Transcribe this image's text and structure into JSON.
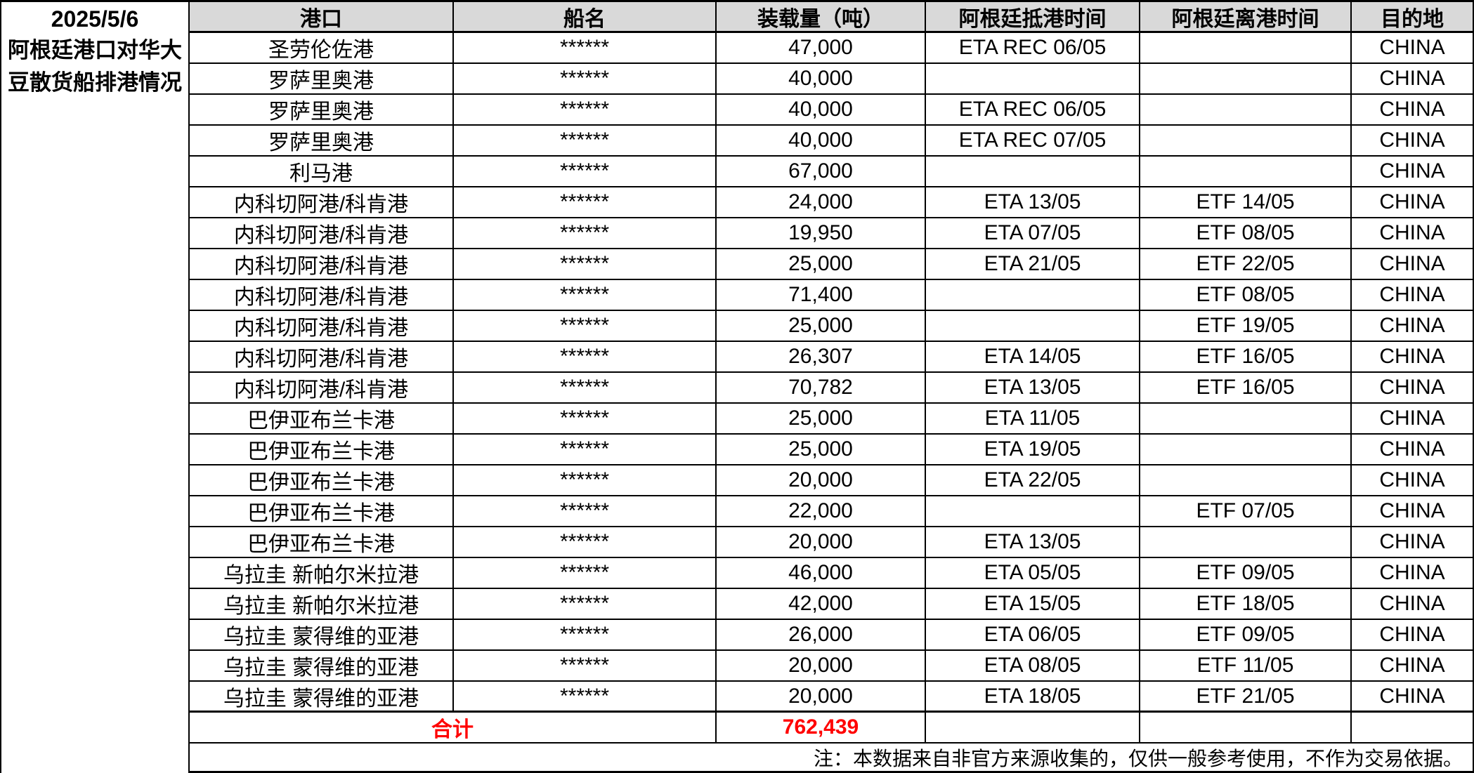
{
  "title": {
    "date": "2025/5/6",
    "caption": "阿根廷港口对华大豆散货船排港情况"
  },
  "colors": {
    "header_bg": "#d9d9d9",
    "accent_red": "#ff0000",
    "border": "#000000"
  },
  "table": {
    "headers": [
      "港口",
      "船名",
      "装载量（吨）",
      "阿根廷抵港时间",
      "阿根廷离港时间",
      "目的地"
    ],
    "rows": [
      {
        "port": "圣劳伦佐港",
        "ship": "******",
        "tons": "47,000",
        "eta": "ETA REC 06/05",
        "etf": "",
        "dest": "CHINA"
      },
      {
        "port": "罗萨里奥港",
        "ship": "******",
        "tons": "40,000",
        "eta": "",
        "etf": "",
        "dest": "CHINA"
      },
      {
        "port": "罗萨里奥港",
        "ship": "******",
        "tons": "40,000",
        "eta": "ETA REC 06/05",
        "etf": "",
        "dest": "CHINA"
      },
      {
        "port": "罗萨里奥港",
        "ship": "******",
        "tons": "40,000",
        "eta": "ETA REC 07/05",
        "etf": "",
        "dest": "CHINA"
      },
      {
        "port": "利马港",
        "ship": "******",
        "tons": "67,000",
        "eta": "",
        "etf": "",
        "dest": "CHINA"
      },
      {
        "port": "内科切阿港/科肯港",
        "ship": "******",
        "tons": "24,000",
        "eta": "ETA 13/05",
        "etf": "ETF 14/05",
        "dest": "CHINA"
      },
      {
        "port": "内科切阿港/科肯港",
        "ship": "******",
        "tons": "19,950",
        "eta": "ETA 07/05",
        "etf": "ETF 08/05",
        "dest": "CHINA"
      },
      {
        "port": "内科切阿港/科肯港",
        "ship": "******",
        "tons": "25,000",
        "eta": "ETA 21/05",
        "etf": "ETF 22/05",
        "dest": "CHINA"
      },
      {
        "port": "内科切阿港/科肯港",
        "ship": "******",
        "tons": "71,400",
        "eta": "",
        "etf": "ETF 08/05",
        "dest": "CHINA"
      },
      {
        "port": "内科切阿港/科肯港",
        "ship": "******",
        "tons": "25,000",
        "eta": "",
        "etf": "ETF 19/05",
        "dest": "CHINA"
      },
      {
        "port": "内科切阿港/科肯港",
        "ship": "******",
        "tons": "26,307",
        "eta": "ETA 14/05",
        "etf": "ETF 16/05",
        "dest": "CHINA"
      },
      {
        "port": "内科切阿港/科肯港",
        "ship": "******",
        "tons": "70,782",
        "eta": "ETA 13/05",
        "etf": "ETF 16/05",
        "dest": "CHINA"
      },
      {
        "port": "巴伊亚布兰卡港",
        "ship": "******",
        "tons": "25,000",
        "eta": "ETA 11/05",
        "etf": "",
        "dest": "CHINA"
      },
      {
        "port": "巴伊亚布兰卡港",
        "ship": "******",
        "tons": "25,000",
        "eta": "ETA 19/05",
        "etf": "",
        "dest": "CHINA"
      },
      {
        "port": "巴伊亚布兰卡港",
        "ship": "******",
        "tons": "20,000",
        "eta": "ETA 22/05",
        "etf": "",
        "dest": "CHINA"
      },
      {
        "port": "巴伊亚布兰卡港",
        "ship": "******",
        "tons": "22,000",
        "eta": "",
        "etf": "ETF 07/05",
        "dest": "CHINA"
      },
      {
        "port": "巴伊亚布兰卡港",
        "ship": "******",
        "tons": "20,000",
        "eta": "ETA 13/05",
        "etf": "",
        "dest": "CHINA"
      },
      {
        "port": "乌拉圭 新帕尔米拉港",
        "ship": "******",
        "tons": "46,000",
        "eta": "ETA 05/05",
        "etf": "ETF 09/05",
        "dest": "CHINA"
      },
      {
        "port": "乌拉圭 新帕尔米拉港",
        "ship": "******",
        "tons": "42,000",
        "eta": "ETA 15/05",
        "etf": "ETF 18/05",
        "dest": "CHINA"
      },
      {
        "port": "乌拉圭 蒙得维的亚港",
        "ship": "******",
        "tons": "26,000",
        "eta": "ETA 06/05",
        "etf": "ETF 09/05",
        "dest": "CHINA"
      },
      {
        "port": "乌拉圭 蒙得维的亚港",
        "ship": "******",
        "tons": "20,000",
        "eta": "ETA 08/05",
        "etf": "ETF 11/05",
        "dest": "CHINA"
      },
      {
        "port": "乌拉圭 蒙得维的亚港",
        "ship": "******",
        "tons": "20,000",
        "eta": "ETA 18/05",
        "etf": "ETF 21/05",
        "dest": "CHINA"
      }
    ],
    "total": {
      "label": "合计",
      "value": "762,439"
    },
    "note": "注：本数据来自非官方来源收集的，仅供一般参考使用，不作为交易依据。"
  }
}
